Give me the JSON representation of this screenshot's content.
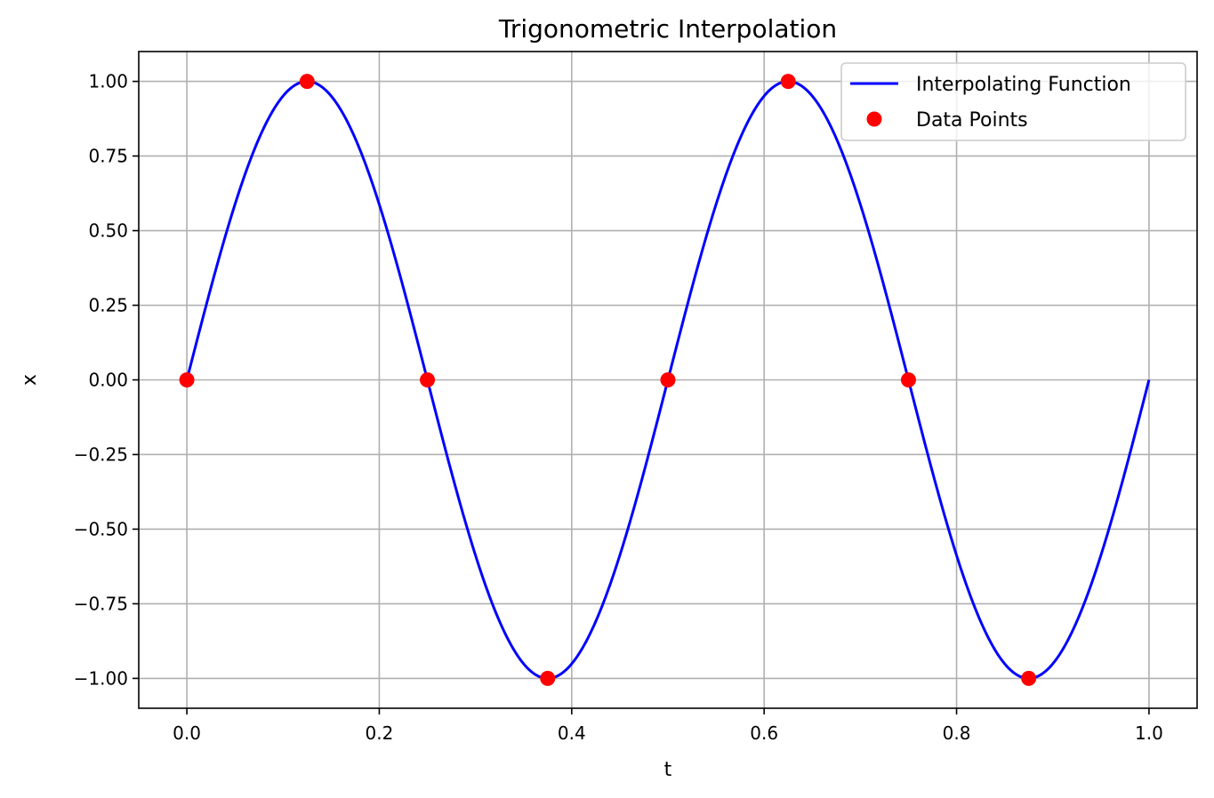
{
  "chart_data": {
    "type": "line",
    "title": "Trigonometric Interpolation",
    "xlabel": "t",
    "ylabel": "x",
    "xlim": [
      -0.05,
      1.05
    ],
    "ylim": [
      -1.1,
      1.1
    ],
    "xticks": [
      0.0,
      0.2,
      0.4,
      0.6,
      0.8,
      1.0
    ],
    "xtick_labels": [
      "0.0",
      "0.2",
      "0.4",
      "0.6",
      "0.8",
      "1.0"
    ],
    "yticks": [
      1.0,
      0.75,
      0.5,
      0.25,
      0.0,
      -0.25,
      -0.5,
      -0.75,
      -1.0
    ],
    "ytick_labels": [
      "1.00",
      "0.75",
      "0.50",
      "0.25",
      "0.00",
      "−0.25",
      "−0.50",
      "−0.75",
      "−1.00"
    ],
    "grid": true,
    "legend_position": "top-right",
    "series": [
      {
        "name": "Interpolating Function",
        "kind": "line",
        "color": "#0000ff",
        "function": "sin(4*pi*t)",
        "x_range": [
          0.0,
          1.0
        ]
      },
      {
        "name": "Data Points",
        "kind": "scatter",
        "color": "#ff0000",
        "x": [
          0.0,
          0.125,
          0.25,
          0.375,
          0.5,
          0.625,
          0.75,
          0.875
        ],
        "y": [
          0.0,
          1.0,
          0.0,
          -1.0,
          0.0,
          1.0,
          0.0,
          -1.0
        ]
      }
    ]
  }
}
